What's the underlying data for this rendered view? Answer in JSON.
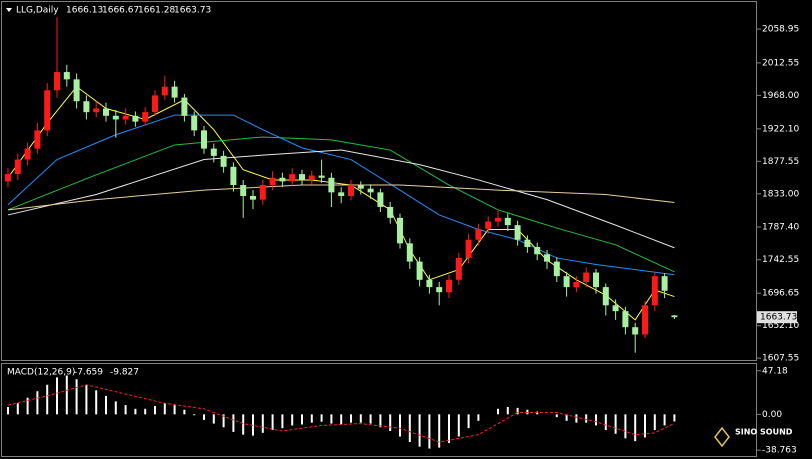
{
  "chart_data": [
    {
      "type": "candlestick",
      "title": "LLG,Daily",
      "open": [
        1850,
        1860,
        1880,
        1895,
        1920,
        1975,
        2000,
        1990,
        1960,
        1945,
        1950,
        1940,
        1935,
        1940,
        1932,
        1945,
        1968,
        1980,
        1965,
        1940,
        1920,
        1895,
        1885,
        1870,
        1845,
        1830,
        1825,
        1845,
        1855,
        1850,
        1860,
        1852,
        1858,
        1855,
        1835,
        1830,
        1845,
        1840,
        1835,
        1815,
        1800,
        1765,
        1740,
        1715,
        1705,
        1698,
        1715,
        1745,
        1770,
        1785,
        1795,
        1800,
        1790,
        1770,
        1760,
        1750,
        1740,
        1720,
        1705,
        1712,
        1725,
        1705,
        1680,
        1672,
        1650,
        1640,
        1680,
        1720,
        1666.13
      ],
      "high": [
        1868,
        1888,
        1903,
        1930,
        1985,
        2075,
        2010,
        1998,
        1968,
        1960,
        1958,
        1948,
        1950,
        1946,
        1952,
        1975,
        1995,
        1988,
        1970,
        1946,
        1926,
        1902,
        1892,
        1876,
        1852,
        1838,
        1852,
        1864,
        1862,
        1868,
        1866,
        1865,
        1880,
        1862,
        1842,
        1852,
        1850,
        1846,
        1840,
        1822,
        1806,
        1772,
        1746,
        1722,
        1712,
        1722,
        1752,
        1778,
        1792,
        1802,
        1810,
        1806,
        1796,
        1776,
        1766,
        1756,
        1746,
        1726,
        1720,
        1732,
        1730,
        1710,
        1688,
        1678,
        1656,
        1686,
        1726,
        1724,
        1666.67
      ],
      "low": [
        1842,
        1852,
        1872,
        1888,
        1912,
        1965,
        1980,
        1950,
        1935,
        1938,
        1932,
        1910,
        1928,
        1925,
        1926,
        1940,
        1962,
        1958,
        1932,
        1912,
        1888,
        1876,
        1862,
        1836,
        1800,
        1812,
        1818,
        1838,
        1842,
        1844,
        1845,
        1846,
        1848,
        1815,
        1820,
        1824,
        1832,
        1826,
        1808,
        1792,
        1758,
        1730,
        1706,
        1696,
        1680,
        1690,
        1708,
        1738,
        1762,
        1778,
        1788,
        1782,
        1762,
        1752,
        1742,
        1730,
        1712,
        1692,
        1698,
        1705,
        1696,
        1666,
        1660,
        1640,
        1615,
        1635,
        1672,
        1690,
        1661.28
      ],
      "close": [
        1860,
        1880,
        1895,
        1920,
        1975,
        2000,
        1990,
        1960,
        1945,
        1950,
        1940,
        1935,
        1940,
        1932,
        1945,
        1968,
        1980,
        1965,
        1940,
        1920,
        1895,
        1885,
        1870,
        1845,
        1830,
        1825,
        1845,
        1855,
        1850,
        1860,
        1852,
        1858,
        1855,
        1835,
        1830,
        1845,
        1840,
        1835,
        1815,
        1800,
        1765,
        1740,
        1715,
        1705,
        1698,
        1715,
        1745,
        1770,
        1785,
        1795,
        1800,
        1790,
        1770,
        1760,
        1750,
        1740,
        1720,
        1705,
        1712,
        1725,
        1705,
        1680,
        1672,
        1650,
        1640,
        1680,
        1720,
        1700,
        1663.73
      ],
      "up_color": "#ff1a1a",
      "down_color": "#a8f0a0",
      "series": [
        {
          "color": "#ffff40",
          "x": [
            0,
            4,
            7,
            10,
            14,
            18,
            21,
            24,
            27,
            31,
            35,
            39,
            41,
            43,
            46,
            49,
            52,
            55,
            58,
            61,
            64,
            66,
            68
          ],
          "values": [
            1855,
            1930,
            1980,
            1950,
            1935,
            1962,
            1921,
            1866,
            1852,
            1852,
            1845,
            1811,
            1756,
            1715,
            1729,
            1784,
            1784,
            1742,
            1715,
            1694,
            1660,
            1701,
            1692
          ]
        },
        {
          "color": "#1e90ff",
          "x": [
            0,
            5,
            11,
            17,
            23,
            26,
            30,
            35,
            40,
            44,
            48,
            52,
            56,
            60,
            64,
            68
          ],
          "values": [
            1818,
            1880,
            1914,
            1941,
            1941,
            1921,
            1896,
            1880,
            1838,
            1804,
            1784,
            1770,
            1745,
            1736,
            1729,
            1722
          ]
        },
        {
          "color": "#20c040",
          "x": [
            0,
            9,
            17,
            26,
            33,
            39,
            45,
            50,
            56,
            62,
            68
          ],
          "values": [
            1811,
            1859,
            1900,
            1911,
            1907,
            1893,
            1845,
            1811,
            1786,
            1763,
            1726
          ]
        },
        {
          "color": "#e8e8e8",
          "x": [
            0,
            9,
            20,
            26,
            34,
            42,
            48,
            55,
            62,
            68
          ],
          "values": [
            1804,
            1832,
            1880,
            1886,
            1893,
            1873,
            1852,
            1825,
            1790,
            1759
          ]
        },
        {
          "color": "#e8cfa0",
          "x": [
            0,
            9,
            20,
            30,
            40,
            50,
            61,
            68
          ],
          "values": [
            1811,
            1825,
            1838,
            1845,
            1845,
            1838,
            1832,
            1821
          ]
        }
      ],
      "ylim": [
        1605,
        2092
      ],
      "yticks": [
        2058.95,
        2012.55,
        {
          "value": 1968,
          "label": "1968.00"
        },
        {
          "value": 1922.1,
          "label": "1922.10"
        },
        1877.55,
        {
          "value": 1833,
          "label": "1833.00"
        },
        {
          "value": 1787.4,
          "label": "1787.40"
        },
        1742.55,
        1696.65,
        {
          "value": 1652.1,
          "label": "1652.10"
        },
        1607.55
      ]
    },
    {
      "type": "macd",
      "title": "MACD(12,26,9)",
      "color": "#ffffff",
      "values": [
        8,
        12,
        18,
        25,
        32,
        40,
        42,
        38,
        32,
        26,
        20,
        14,
        10,
        6,
        6,
        9,
        12,
        10,
        5,
        -1,
        -6,
        -10,
        -14,
        -19,
        -22,
        -23,
        -20,
        -17,
        -15,
        -12,
        -11,
        -9,
        -8,
        -10,
        -11,
        -9,
        -9,
        -10,
        -14,
        -18,
        -24,
        -30,
        -35,
        -37,
        -36,
        -31,
        -24,
        -15,
        -7,
        0,
        6,
        8,
        7,
        5,
        3,
        0,
        -3,
        -7,
        -9,
        -9,
        -12,
        -17,
        -21,
        -26,
        -29,
        -25,
        -17,
        -12,
        -7.659
      ],
      "signal": {
        "color": "#ff2020",
        "x": [
          0,
          4,
          8,
          12,
          16,
          20,
          24,
          28,
          32,
          36,
          40,
          44,
          48,
          52,
          56,
          60,
          64,
          66,
          68
        ],
        "values": [
          10,
          20,
          32,
          22,
          12,
          6,
          -10,
          -18,
          -12,
          -10,
          -15,
          -30,
          -22,
          2,
          2,
          -8,
          -22,
          -20,
          -9.827
        ]
      },
      "ylim": [
        -44,
        54.5
      ],
      "yticks": [
        47.18,
        {
          "value": 0,
          "label": "0.00"
        },
        -38.763
      ]
    }
  ],
  "watermark": "SINO SOUND"
}
